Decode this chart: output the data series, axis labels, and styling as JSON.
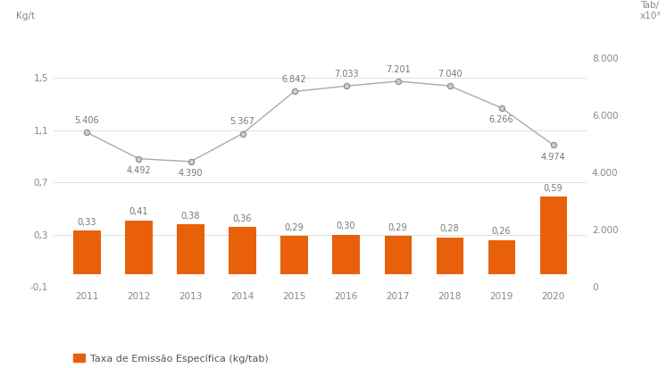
{
  "years": [
    2011,
    2012,
    2013,
    2014,
    2015,
    2016,
    2017,
    2018,
    2019,
    2020
  ],
  "bar_values": [
    0.33,
    0.41,
    0.38,
    0.36,
    0.29,
    0.3,
    0.29,
    0.28,
    0.26,
    0.59
  ],
  "line_values": [
    5406,
    4492,
    4390,
    5367,
    6842,
    7033,
    7201,
    7040,
    6266,
    4974
  ],
  "bar_color": "#E8610A",
  "line_color": "#AAAAAA",
  "marker_facecolor": "#CCCCCC",
  "marker_edgecolor": "#888888",
  "background_color": "#FFFFFF",
  "grid_color": "#E0E0E0",
  "left_ylabel": "Kg/t",
  "right_ylabel": "Tab/\nx10³",
  "ylim_left": [
    -0.1,
    1.9
  ],
  "ylim_right": [
    0,
    9142
  ],
  "left_yticks": [
    -0.1,
    0.3,
    0.7,
    1.1,
    1.5
  ],
  "right_yticks": [
    0,
    2000,
    4000,
    6000,
    8000
  ],
  "legend_bar_label": "Taxa de Emissão Específica (kg/tab)",
  "font_size_labels": 7,
  "font_size_axis": 7.5,
  "font_size_legend": 8,
  "line_label_above": [
    0,
    3,
    4,
    5,
    6,
    7
  ],
  "line_label_below": [
    1,
    2,
    8,
    9
  ]
}
